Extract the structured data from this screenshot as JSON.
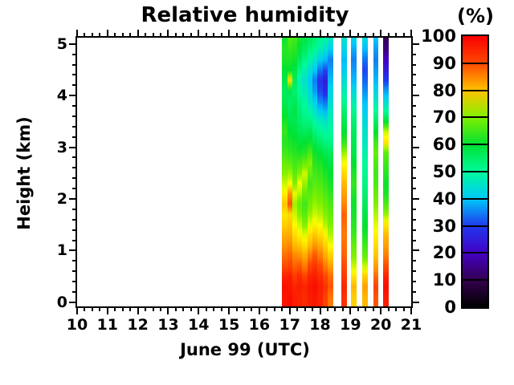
{
  "title": "Relative humidity",
  "colorbar": {
    "unit_label": "(%)",
    "tick_labels": [
      "100",
      "90",
      "80",
      "70",
      "60",
      "50",
      "40",
      "30",
      "20",
      "10",
      "0"
    ],
    "min": 0,
    "max": 100
  },
  "axes": {
    "x": {
      "label": "June 99 (UTC)",
      "min": 10,
      "max": 21,
      "major_step": 1,
      "minor_step": 0.25,
      "tick_labels": [
        "10",
        "11",
        "12",
        "13",
        "14",
        "15",
        "16",
        "17",
        "18",
        "19",
        "20",
        "21"
      ]
    },
    "y": {
      "label": "Height (km)",
      "min": 0,
      "max": 5,
      "major_step": 1,
      "minor_step": 0.2,
      "tick_labels": [
        "0",
        "1",
        "2",
        "3",
        "4",
        "5"
      ]
    }
  },
  "chart_data": {
    "type": "heatmap",
    "title": "Relative humidity",
    "xlabel": "June 99 (UTC)",
    "ylabel": "Height (km)",
    "zlabel": "(%)",
    "xlim": [
      10,
      21
    ],
    "ylim": [
      0,
      5.1
    ],
    "zlim": [
      0,
      100
    ],
    "grid": false,
    "legend_position": "right-colorbar",
    "column_duration_h": 0.167,
    "heights_km": [
      0.1,
      0.3,
      0.5,
      0.7,
      0.9,
      1.1,
      1.3,
      1.5,
      1.7,
      1.9,
      2.1,
      2.3,
      2.5,
      2.7,
      2.9,
      3.1,
      3.3,
      3.5,
      3.7,
      3.9,
      4.1,
      4.3,
      4.5,
      4.7,
      4.9,
      5.1
    ],
    "columns": [
      {
        "t": 16.83,
        "rh": [
          97,
          98,
          95,
          90,
          87,
          84,
          82,
          79,
          77,
          80,
          76,
          73,
          70,
          68,
          65,
          63,
          64,
          62,
          59,
          57,
          56,
          58,
          60,
          62,
          63,
          61
        ]
      },
      {
        "t": 17.0,
        "rh": [
          98,
          97,
          96,
          91,
          88,
          85,
          82,
          80,
          78,
          89,
          84,
          75,
          71,
          67,
          64,
          62,
          60,
          58,
          56,
          55,
          57,
          78,
          60,
          62,
          64,
          66
        ]
      },
      {
        "t": 17.17,
        "rh": [
          96,
          95,
          92,
          88,
          85,
          81,
          78,
          75,
          73,
          71,
          74,
          70,
          67,
          65,
          63,
          61,
          59,
          57,
          58,
          56,
          54,
          56,
          58,
          61,
          63,
          65
        ]
      },
      {
        "t": 17.33,
        "rh": [
          95,
          96,
          94,
          89,
          84,
          80,
          76,
          73,
          70,
          68,
          72,
          75,
          70,
          66,
          62,
          59,
          57,
          55,
          54,
          52,
          50,
          48,
          52,
          56,
          59,
          62
        ]
      },
      {
        "t": 17.5,
        "rh": [
          94,
          95,
          91,
          86,
          82,
          78,
          74,
          70,
          67,
          65,
          68,
          71,
          73,
          68,
          63,
          60,
          56,
          53,
          51,
          49,
          47,
          45,
          48,
          52,
          56,
          58
        ]
      },
      {
        "t": 17.67,
        "rh": [
          96,
          97,
          95,
          91,
          86,
          81,
          78,
          74,
          71,
          69,
          67,
          65,
          68,
          70,
          66,
          61,
          57,
          53,
          49,
          45,
          43,
          41,
          44,
          49,
          53,
          56
        ]
      },
      {
        "t": 17.83,
        "rh": [
          97,
          98,
          96,
          93,
          89,
          84,
          80,
          76,
          73,
          71,
          69,
          67,
          65,
          63,
          61,
          57,
          53,
          49,
          45,
          41,
          37,
          35,
          40,
          46,
          51,
          54
        ]
      },
      {
        "t": 18.0,
        "rh": [
          95,
          96,
          94,
          90,
          86,
          82,
          78,
          75,
          72,
          70,
          68,
          66,
          64,
          62,
          59,
          55,
          51,
          47,
          41,
          35,
          31,
          29,
          34,
          41,
          47,
          51
        ]
      },
      {
        "t": 18.17,
        "rh": [
          91,
          93,
          90,
          86,
          82,
          79,
          76,
          72,
          70,
          68,
          66,
          64,
          62,
          60,
          57,
          53,
          49,
          45,
          39,
          33,
          27,
          25,
          31,
          39,
          45,
          49
        ]
      },
      {
        "t": 18.33,
        "rh": [
          86,
          89,
          87,
          83,
          79,
          75,
          72,
          70,
          68,
          66,
          64,
          62,
          60,
          58,
          56,
          52,
          50,
          48,
          46,
          44,
          42,
          39,
          37,
          35,
          41,
          46
        ]
      },
      {
        "t": 18.78,
        "rh": [
          93,
          95,
          92,
          90,
          88,
          87,
          86,
          87,
          88,
          85,
          83,
          81,
          78,
          75,
          71,
          64,
          60,
          57,
          54,
          51,
          47,
          44,
          41,
          39,
          42,
          45
        ]
      },
      {
        "t": 19.11,
        "rh": [
          79,
          81,
          77,
          73,
          70,
          68,
          65,
          63,
          62,
          61,
          62,
          64,
          62,
          60,
          58,
          57,
          56,
          54,
          51,
          47,
          43,
          39,
          37,
          35,
          38,
          42
        ]
      },
      {
        "t": 19.47,
        "rh": [
          81,
          83,
          79,
          73,
          68,
          65,
          62,
          60,
          58,
          56,
          54,
          52,
          51,
          50,
          48,
          46,
          45,
          43,
          41,
          39,
          36,
          33,
          31,
          34,
          39,
          43
        ]
      },
      {
        "t": 19.83,
        "rh": [
          89,
          91,
          87,
          83,
          80,
          78,
          76,
          74,
          72,
          70,
          68,
          66,
          65,
          66,
          68,
          65,
          60,
          55,
          50,
          46,
          42,
          39,
          37,
          35,
          37,
          40
        ]
      },
      {
        "t": 20.17,
        "rh": [
          96,
          98,
          95,
          90,
          86,
          83,
          81,
          77,
          71,
          66,
          62,
          61,
          63,
          65,
          67,
          77,
          73,
          60,
          50,
          43,
          37,
          30,
          25,
          20,
          14,
          11
        ]
      }
    ],
    "colormap": [
      {
        "v": 0,
        "c": "#000000"
      },
      {
        "v": 10,
        "c": "#33004e"
      },
      {
        "v": 20,
        "c": "#4400c4"
      },
      {
        "v": 30,
        "c": "#2038ee"
      },
      {
        "v": 40,
        "c": "#00c8fa"
      },
      {
        "v": 50,
        "c": "#00fa9b"
      },
      {
        "v": 60,
        "c": "#00e132"
      },
      {
        "v": 70,
        "c": "#80f000"
      },
      {
        "v": 75,
        "c": "#fdfd00"
      },
      {
        "v": 80,
        "c": "#ffc400"
      },
      {
        "v": 90,
        "c": "#ff4800"
      },
      {
        "v": 100,
        "c": "#f80000"
      }
    ]
  }
}
